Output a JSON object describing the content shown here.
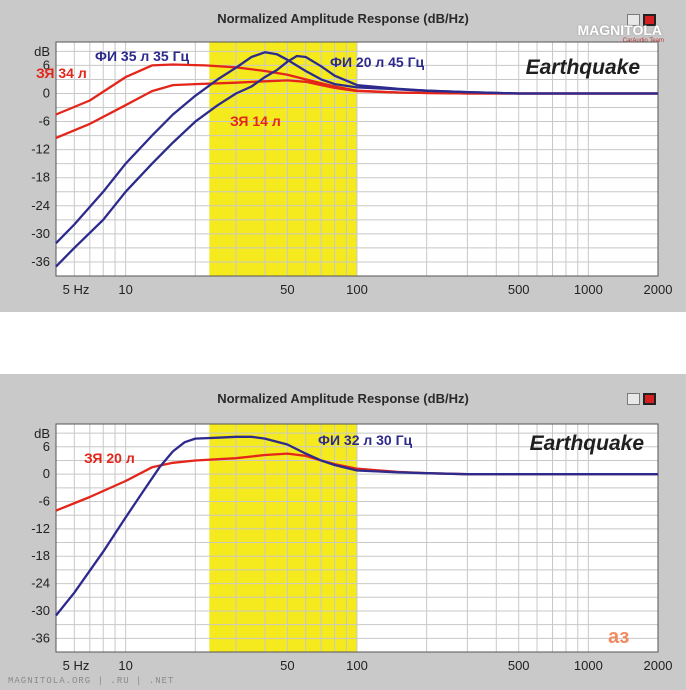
{
  "chart_data": [
    {
      "type": "line",
      "title": "Normalized Amplitude Response (dB/Hz)",
      "brand": "Earthquake",
      "xscale": "log",
      "xlim": [
        5,
        2000
      ],
      "ylim": [
        -39,
        11
      ],
      "ylabel": "dB",
      "xticks": [
        5,
        10,
        50,
        100,
        500,
        1000,
        2000
      ],
      "xtick_labels": [
        "5 Hz",
        "10",
        "50",
        "100",
        "500",
        "1000",
        "2000"
      ],
      "yticks": [
        6,
        0,
        -6,
        -12,
        -18,
        -24,
        -30,
        -36
      ],
      "highlight_band": {
        "from": 23,
        "to": 100,
        "color": "#f5ea1d"
      },
      "grid": true,
      "series": [
        {
          "name": "ЗЯ 34 л",
          "color": "#e4261a",
          "x": [
            5,
            7,
            10,
            13,
            16,
            22,
            30,
            40,
            50,
            60,
            70,
            80,
            100,
            150,
            200,
            300,
            500,
            1000,
            2000
          ],
          "y": [
            -4.5,
            -1.5,
            3.5,
            6,
            6.2,
            6,
            5.6,
            4.8,
            4,
            3,
            2.2,
            1.5,
            0.6,
            0.2,
            0.1,
            0,
            0,
            0,
            0
          ]
        },
        {
          "name": "ЗЯ 14 л",
          "color": "#e4261a",
          "x": [
            5,
            7,
            10,
            13,
            16,
            20,
            30,
            40,
            50,
            60,
            70,
            80,
            100,
            150,
            200,
            300,
            500,
            1000,
            2000
          ],
          "y": [
            -9.5,
            -6.5,
            -2.5,
            0.5,
            1.8,
            2,
            2.3,
            2.6,
            2.8,
            2.5,
            1.8,
            1.2,
            0.5,
            0.2,
            0.1,
            0,
            0,
            0,
            0
          ]
        },
        {
          "name": "ФИ 35 л 35 Гц",
          "color": "#2d2a8e",
          "x": [
            5,
            6,
            8,
            10,
            13,
            16,
            20,
            25,
            30,
            35,
            40,
            45,
            50,
            60,
            70,
            80,
            100,
            150,
            200,
            300,
            500,
            1000,
            2000
          ],
          "y": [
            -32,
            -28,
            -21,
            -15,
            -9,
            -4.5,
            -0.5,
            3,
            5.5,
            7.8,
            8.8,
            8.4,
            7.2,
            4.8,
            3,
            2,
            1.3,
            0.9,
            0.6,
            0.3,
            0,
            0,
            0
          ]
        },
        {
          "name": "ФИ 20 л 45 Гц",
          "color": "#2d2a8e",
          "x": [
            5,
            6,
            8,
            10,
            13,
            16,
            20,
            25,
            30,
            35,
            40,
            45,
            50,
            55,
            60,
            70,
            80,
            100,
            150,
            200,
            300,
            500,
            1000,
            2000
          ],
          "y": [
            -37,
            -33,
            -27,
            -21,
            -15,
            -10.5,
            -6,
            -2.5,
            0,
            1.5,
            3.5,
            5,
            6.8,
            8,
            7.8,
            5.8,
            3.8,
            1.8,
            1,
            0.6,
            0.3,
            0,
            0,
            0
          ]
        }
      ]
    },
    {
      "type": "line",
      "title": "Normalized Amplitude Response (dB/Hz)",
      "brand": "Earthquake",
      "xscale": "log",
      "xlim": [
        5,
        2000
      ],
      "ylim": [
        -39,
        11
      ],
      "ylabel": "dB",
      "xticks": [
        5,
        10,
        50,
        100,
        500,
        1000,
        2000
      ],
      "xtick_labels": [
        "5 Hz",
        "10",
        "50",
        "100",
        "500",
        "1000",
        "2000"
      ],
      "yticks": [
        6,
        0,
        -6,
        -12,
        -18,
        -24,
        -30,
        -36
      ],
      "highlight_band": {
        "from": 23,
        "to": 100,
        "color": "#f5ea1d"
      },
      "grid": true,
      "series": [
        {
          "name": "ЗЯ 20 л",
          "color": "#e4261a",
          "x": [
            5,
            7,
            10,
            13,
            16,
            20,
            30,
            40,
            50,
            60,
            70,
            80,
            100,
            150,
            200,
            300,
            500,
            1000,
            2000
          ],
          "y": [
            -8,
            -5,
            -1.5,
            1.5,
            2.5,
            3,
            3.5,
            4.2,
            4.5,
            4,
            3,
            2.2,
            1.2,
            0.5,
            0.2,
            0,
            0,
            0,
            0
          ]
        },
        {
          "name": "ФИ 32 л 30 Гц",
          "color": "#2d2a8e",
          "x": [
            5,
            6,
            8,
            10,
            12,
            14,
            16,
            18,
            20,
            25,
            30,
            35,
            40,
            50,
            60,
            70,
            80,
            100,
            150,
            200,
            300,
            500,
            1000,
            2000
          ],
          "y": [
            -31,
            -26,
            -17,
            -9.5,
            -3.5,
            1.5,
            5,
            7,
            7.8,
            8,
            8.2,
            8.2,
            7.8,
            6.5,
            4.5,
            3,
            2,
            0.8,
            0.4,
            0.2,
            0,
            0,
            0,
            0
          ]
        }
      ]
    }
  ],
  "watermarks": {
    "top": "MAGNITOLA",
    "top_sub": "CarAudio Team",
    "bottom": "MAGNITOLA.ORG | .RU | .NET",
    "logo": "аз"
  }
}
